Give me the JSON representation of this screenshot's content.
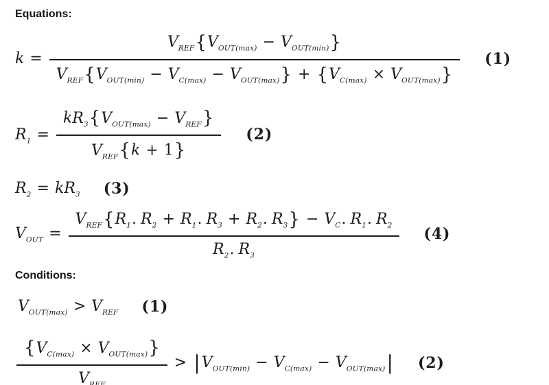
{
  "page": {
    "equations_heading": "Equations:",
    "conditions_heading": "Conditions:",
    "text_color": "#1c1c1c",
    "background_color": "#ffffff"
  },
  "equations": [
    {
      "number": "(1)",
      "tokens": [
        {
          "v": "k"
        },
        {
          "op": "="
        },
        {
          "frac": {
            "num": [
              {
                "v": "V",
                "sub": "REF"
              },
              {
                "b": "{"
              },
              {
                "v": "V",
                "sub": "OUT(max)"
              },
              {
                "op": "−"
              },
              {
                "v": "V",
                "sub": "OUT(min)"
              },
              {
                "b": "}"
              }
            ],
            "den": [
              {
                "v": "V",
                "sub": "REF"
              },
              {
                "b": "{"
              },
              {
                "v": "V",
                "sub": "OUT(min)"
              },
              {
                "op": "−"
              },
              {
                "v": "V",
                "sub": "C(max)"
              },
              {
                "op": "−"
              },
              {
                "v": "V",
                "sub": "OUT(max)"
              },
              {
                "b": "}"
              },
              {
                "op": "+"
              },
              {
                "b": "{"
              },
              {
                "v": "V",
                "sub": "C(max)"
              },
              {
                "op": "×"
              },
              {
                "v": "V",
                "sub": "OUT(max)"
              },
              {
                "b": "}"
              }
            ]
          }
        }
      ]
    },
    {
      "number": "(2)",
      "tokens": [
        {
          "v": "R",
          "sub": "1"
        },
        {
          "op": "="
        },
        {
          "frac": {
            "num": [
              {
                "v": "k"
              },
              {
                "v": "R",
                "sub": "3"
              },
              {
                "b": "{"
              },
              {
                "v": "V",
                "sub": "OUT(max)"
              },
              {
                "op": "−"
              },
              {
                "v": "V",
                "sub": "REF"
              },
              {
                "b": "}"
              }
            ],
            "den": [
              {
                "v": "V",
                "sub": "REF"
              },
              {
                "b": "{"
              },
              {
                "v": "k"
              },
              {
                "op": "+"
              },
              {
                "n": "1"
              },
              {
                "b": "}"
              }
            ]
          }
        }
      ]
    },
    {
      "number": "(3)",
      "tokens": [
        {
          "v": "R",
          "sub": "2"
        },
        {
          "op": "="
        },
        {
          "v": "k"
        },
        {
          "v": "R",
          "sub": "3"
        }
      ]
    },
    {
      "number": "(4)",
      "tokens": [
        {
          "v": "V",
          "sub": "OUT"
        },
        {
          "op": "="
        },
        {
          "frac": {
            "num": [
              {
                "v": "V",
                "sub": "REF"
              },
              {
                "b": "{"
              },
              {
                "v": "R",
                "sub": "1"
              },
              {
                "d": "."
              },
              {
                "v": "R",
                "sub": "2"
              },
              {
                "op": "+"
              },
              {
                "v": "R",
                "sub": "1"
              },
              {
                "d": "."
              },
              {
                "v": "R",
                "sub": "3"
              },
              {
                "op": "+"
              },
              {
                "v": "R",
                "sub": "2"
              },
              {
                "d": "."
              },
              {
                "v": "R",
                "sub": "3"
              },
              {
                "b": "}"
              },
              {
                "op": "−"
              },
              {
                "v": "V",
                "sub": "C"
              },
              {
                "d": "."
              },
              {
                "v": "R",
                "sub": "1"
              },
              {
                "d": "."
              },
              {
                "v": "R",
                "sub": "2"
              }
            ],
            "den": [
              {
                "v": "R",
                "sub": "2"
              },
              {
                "d": "."
              },
              {
                "v": "R",
                "sub": "3"
              }
            ]
          }
        }
      ]
    }
  ],
  "conditions": [
    {
      "number": "(1)",
      "tokens": [
        {
          "v": "V",
          "sub": "OUT(max)"
        },
        {
          "op": ">"
        },
        {
          "v": "V",
          "sub": "REF"
        }
      ]
    },
    {
      "number": "(2)",
      "tokens": [
        {
          "frac": {
            "num": [
              {
                "b": "{"
              },
              {
                "v": "V",
                "sub": "C(max)"
              },
              {
                "op": "×"
              },
              {
                "v": "V",
                "sub": "OUT(max)"
              },
              {
                "b": "}"
              }
            ],
            "den": [
              {
                "v": "V",
                "sub": "REF"
              }
            ]
          }
        },
        {
          "op": ">"
        },
        {
          "bar": "|"
        },
        {
          "v": "V",
          "sub": "OUT(min)"
        },
        {
          "op": "−"
        },
        {
          "v": "V",
          "sub": "C(max)"
        },
        {
          "op": "−"
        },
        {
          "v": "V",
          "sub": "OUT(max)"
        },
        {
          "bar": "|"
        }
      ]
    }
  ]
}
